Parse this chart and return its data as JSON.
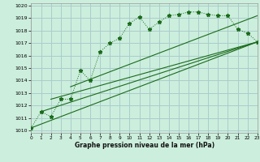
{
  "title": "Graphe pression niveau de la mer (hPa)",
  "background_color": "#cceedd",
  "grid_color": "#aacccc",
  "line_color": "#1a6b1a",
  "x_values": [
    0,
    1,
    2,
    3,
    4,
    5,
    6,
    7,
    8,
    9,
    10,
    11,
    12,
    13,
    14,
    15,
    16,
    17,
    18,
    19,
    20,
    21,
    22,
    23
  ],
  "series1": [
    1010.2,
    1011.5,
    1011.1,
    1012.5,
    1012.5,
    1014.8,
    1014.0,
    1016.3,
    1017.0,
    1017.4,
    1018.6,
    1019.1,
    1018.1,
    1018.7,
    1019.2,
    1019.3,
    1019.5,
    1019.5,
    1019.3,
    1019.2,
    1019.2,
    1018.1,
    1017.8,
    1017.1
  ],
  "trend_lines": [
    [
      0,
      1010.2,
      23,
      1017.1
    ],
    [
      1,
      1011.5,
      23,
      1017.1
    ],
    [
      2,
      1012.5,
      23,
      1017.1
    ],
    [
      4,
      1013.5,
      23,
      1019.2
    ]
  ],
  "xlim": [
    0,
    23
  ],
  "ylim": [
    1009.8,
    1020.2
  ],
  "yticks": [
    1010,
    1011,
    1012,
    1013,
    1014,
    1015,
    1016,
    1017,
    1018,
    1019,
    1020
  ],
  "xticks": [
    0,
    1,
    2,
    3,
    4,
    5,
    6,
    7,
    8,
    9,
    10,
    11,
    12,
    13,
    14,
    15,
    16,
    17,
    18,
    19,
    20,
    21,
    22,
    23
  ]
}
